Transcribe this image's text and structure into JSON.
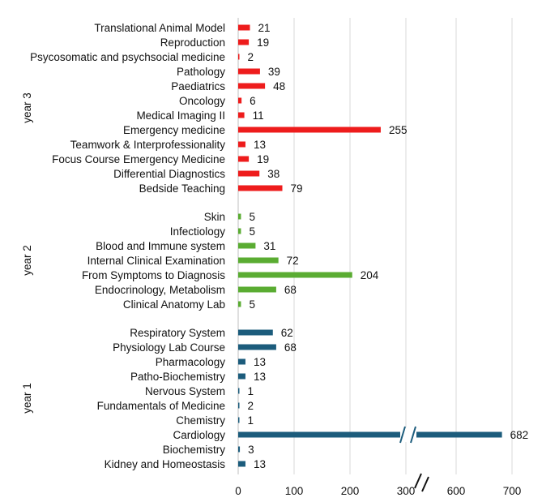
{
  "chart_data": {
    "type": "bar",
    "orientation": "horizontal",
    "title": "",
    "xlabel": "",
    "ylabel": "",
    "axis_break": {
      "from": 300,
      "to": 600
    },
    "x_ticks": [
      0,
      100,
      200,
      300,
      600,
      700
    ],
    "x_tick_labels": [
      "0",
      "100",
      "200",
      "300",
      "600",
      "700"
    ],
    "grid": true,
    "groups": [
      {
        "name": "year 3",
        "color": "#ee1c1c",
        "items": [
          {
            "label": "Translational Animal Model",
            "value": 21
          },
          {
            "label": "Reproduction",
            "value": 19
          },
          {
            "label": "Psycosomatic and psychsocial medicine",
            "value": 2
          },
          {
            "label": "Pathology",
            "value": 39
          },
          {
            "label": "Paediatrics",
            "value": 48
          },
          {
            "label": "Oncology",
            "value": 6
          },
          {
            "label": "Medical Imaging II",
            "value": 11
          },
          {
            "label": "Emergency medicine",
            "value": 255
          },
          {
            "label": "Teamwork & Interprofessionality",
            "value": 13
          },
          {
            "label": "Focus Course Emergency Medicine",
            "value": 19
          },
          {
            "label": "Differential Diagnostics",
            "value": 38
          },
          {
            "label": "Bedside Teaching",
            "value": 79
          }
        ]
      },
      {
        "name": "year 2",
        "color": "#5aac32",
        "items": [
          {
            "label": "Skin",
            "value": 5
          },
          {
            "label": "Infectiology",
            "value": 5
          },
          {
            "label": "Blood and Immune system",
            "value": 31
          },
          {
            "label": "Internal Clinical Examination",
            "value": 72
          },
          {
            "label": "From Symptoms to Diagnosis",
            "value": 204
          },
          {
            "label": "Endocrinology, Metabolism",
            "value": 68
          },
          {
            "label": "Clinical Anatomy Lab",
            "value": 5
          }
        ]
      },
      {
        "name": "year 1",
        "color": "#1c5c7c",
        "items": [
          {
            "label": "Respiratory System",
            "value": 62
          },
          {
            "label": "Physiology Lab Course",
            "value": 68
          },
          {
            "label": "Pharmacology",
            "value": 13
          },
          {
            "label": "Patho-Biochemistry",
            "value": 13
          },
          {
            "label": "Nervous System",
            "value": 1
          },
          {
            "label": "Fundamentals of Medicine",
            "value": 2
          },
          {
            "label": "Chemistry",
            "value": 1
          },
          {
            "label": "Cardiology",
            "value": 682
          },
          {
            "label": "Biochemistry",
            "value": 3
          },
          {
            "label": "Kidney and Homeostasis",
            "value": 13
          }
        ]
      }
    ]
  }
}
